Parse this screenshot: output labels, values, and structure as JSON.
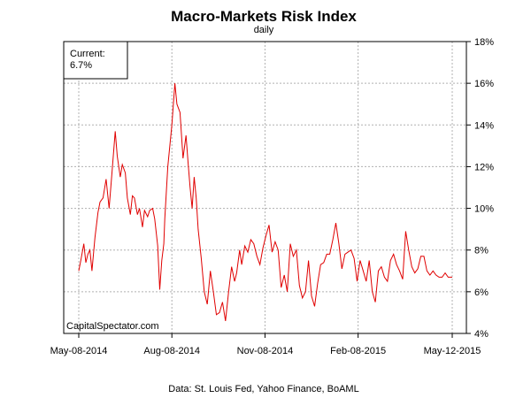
{
  "chart_data": {
    "type": "line",
    "title": "Macro-Markets Risk Index",
    "subtitle": "daily",
    "source": "Data: St. Louis Fed, Yahoo Finance, BoAML",
    "watermark": "CapitalSpectator.com",
    "legend": {
      "label": "Current:",
      "value": "6.7%",
      "placement": "top-left"
    },
    "x_ticks": [
      "May-08-2014",
      "Aug-08-2014",
      "Nov-08-2014",
      "Feb-08-2015",
      "May-12-2015"
    ],
    "x_range": [
      "2014-05-08",
      "2015-05-12"
    ],
    "y_ticks": [
      "4%",
      "6%",
      "8%",
      "10%",
      "12%",
      "14%",
      "16%",
      "18%"
    ],
    "ylim": [
      4,
      18
    ],
    "y_axis_side": "right",
    "grid": true,
    "line_color": "#e00000",
    "series": [
      {
        "x": [
          "2014-05-08",
          "2014-05-10",
          "2014-05-13",
          "2014-05-15",
          "2014-05-17",
          "2014-05-19",
          "2014-05-21",
          "2014-05-24",
          "2014-05-27",
          "2014-05-29",
          "2014-06-01",
          "2014-06-04",
          "2014-06-07",
          "2014-06-10",
          "2014-06-13",
          "2014-06-15",
          "2014-06-18",
          "2014-06-20",
          "2014-06-23",
          "2014-06-25",
          "2014-06-28",
          "2014-06-30",
          "2014-07-02",
          "2014-07-05",
          "2014-07-07",
          "2014-07-10",
          "2014-07-12",
          "2014-07-15",
          "2014-07-17",
          "2014-07-20",
          "2014-07-22",
          "2014-07-25",
          "2014-07-27",
          "2014-07-29",
          "2014-07-31",
          "2014-08-01",
          "2014-08-04",
          "2014-08-08",
          "2014-08-11",
          "2014-08-13",
          "2014-08-16",
          "2014-08-19",
          "2014-08-22",
          "2014-08-24",
          "2014-08-26",
          "2014-08-28",
          "2014-08-30",
          "2014-09-01",
          "2014-09-03",
          "2014-09-06",
          "2014-09-09",
          "2014-09-12",
          "2014-09-15",
          "2014-09-18",
          "2014-09-21",
          "2014-09-24",
          "2014-09-27",
          "2014-09-30",
          "2014-10-03",
          "2014-10-06",
          "2014-10-09",
          "2014-10-11",
          "2014-10-14",
          "2014-10-16",
          "2014-10-19",
          "2014-10-22",
          "2014-10-25",
          "2014-10-28",
          "2014-10-31",
          "2014-11-03",
          "2014-11-06",
          "2014-11-09",
          "2014-11-12",
          "2014-11-15",
          "2014-11-18",
          "2014-11-21",
          "2014-11-24",
          "2014-11-27",
          "2014-11-30",
          "2014-12-03",
          "2014-12-06",
          "2014-12-09",
          "2014-12-12",
          "2014-12-15",
          "2014-12-18",
          "2014-12-21",
          "2014-12-24",
          "2014-12-27",
          "2014-12-30",
          "2015-01-02",
          "2015-01-05",
          "2015-01-08",
          "2015-01-11",
          "2015-01-14",
          "2015-01-17",
          "2015-01-20",
          "2015-01-23",
          "2015-01-26",
          "2015-01-29",
          "2015-02-01",
          "2015-02-04",
          "2015-02-07",
          "2015-02-10",
          "2015-02-13",
          "2015-02-16",
          "2015-02-19",
          "2015-02-22",
          "2015-02-25",
          "2015-02-28",
          "2015-03-03",
          "2015-03-06",
          "2015-03-09",
          "2015-03-12",
          "2015-03-15",
          "2015-03-18",
          "2015-03-21",
          "2015-03-24",
          "2015-03-27",
          "2015-03-30",
          "2015-04-02",
          "2015-04-05",
          "2015-04-08",
          "2015-04-11",
          "2015-04-14",
          "2015-04-17",
          "2015-04-20",
          "2015-04-23",
          "2015-04-26",
          "2015-04-29",
          "2015-05-02",
          "2015-05-05",
          "2015-05-08",
          "2015-05-12"
        ],
        "y": [
          7.0,
          7.5,
          8.3,
          7.4,
          7.8,
          8.0,
          7.0,
          8.6,
          9.8,
          10.3,
          10.5,
          11.4,
          10.0,
          11.8,
          13.7,
          12.5,
          11.5,
          12.1,
          11.7,
          10.5,
          9.7,
          10.6,
          10.5,
          9.7,
          10.0,
          9.1,
          9.9,
          9.6,
          9.9,
          10.0,
          9.5,
          8.2,
          6.1,
          7.5,
          8.3,
          9.5,
          12.0,
          14.0,
          16.0,
          15.0,
          14.6,
          12.4,
          13.5,
          12.2,
          11.0,
          10.0,
          11.5,
          10.5,
          9.0,
          7.6,
          6.0,
          5.4,
          7.0,
          6.0,
          4.9,
          5.0,
          5.5,
          4.6,
          6.0,
          7.2,
          6.5,
          6.9,
          8.0,
          7.3,
          8.2,
          7.9,
          8.5,
          8.3,
          7.7,
          7.3,
          8.1,
          8.7,
          9.2,
          7.9,
          8.4,
          8.0,
          6.2,
          6.8,
          6.0,
          8.3,
          7.7,
          8.0,
          6.3,
          5.7,
          6.0,
          7.5,
          5.8,
          5.3,
          6.4,
          7.3,
          7.4,
          7.8,
          7.8,
          8.5,
          9.3,
          8.3,
          7.1,
          7.8,
          7.9,
          8.0,
          7.6,
          6.5,
          7.5,
          7.0,
          6.5,
          7.5,
          6.0,
          5.5,
          7.0,
          7.2,
          6.7,
          6.5,
          7.5,
          7.8,
          7.3,
          7.0,
          6.6,
          8.9,
          8.0,
          7.2,
          6.9,
          7.1,
          7.7,
          7.7,
          7.0,
          6.8,
          7.0,
          6.8,
          6.7,
          6.7,
          6.9,
          6.7,
          6.7
        ]
      }
    ]
  }
}
